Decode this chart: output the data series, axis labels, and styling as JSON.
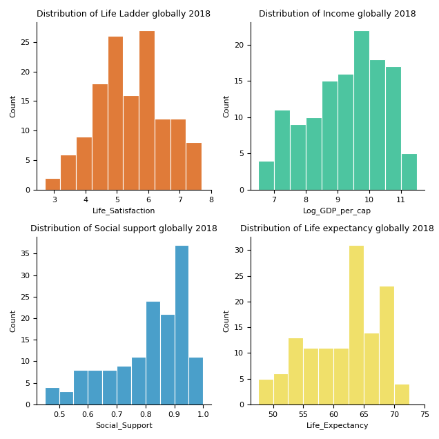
{
  "title1": "Distribution of Life Ladder globally 2018",
  "title2": "Distribution of Income globally 2018",
  "title3": "Distribution of Social support globally 2018",
  "title4": "Distribution of Life expectancy globally 2018",
  "xlabel1": "Life_Satisfaction",
  "xlabel2": "Log_GDP_per_cap",
  "xlabel3": "Social_Support",
  "xlabel4": "Life_Expectancy",
  "ylabel": "Count",
  "color1": "#E07B39",
  "color2": "#4DC5A0",
  "color3": "#4A9FCA",
  "color4": "#F0E06A",
  "hist1_values": [
    2,
    6,
    9,
    18,
    26,
    16,
    27,
    12,
    12,
    8
  ],
  "hist1_bins": [
    2.7,
    3.2,
    3.7,
    4.2,
    4.7,
    5.2,
    5.7,
    6.2,
    6.7,
    7.2,
    7.7
  ],
  "hist1_xticks": [
    3,
    4,
    5,
    6,
    7,
    8
  ],
  "hist2_values": [
    4,
    11,
    9,
    10,
    15,
    16,
    22,
    18,
    17,
    5
  ],
  "hist2_bins": [
    6.5,
    7.0,
    7.5,
    8.0,
    8.5,
    9.0,
    9.5,
    10.0,
    10.5,
    11.0,
    11.5
  ],
  "hist2_xticks": [
    7,
    8,
    9,
    10,
    11
  ],
  "hist3_values": [
    4,
    3,
    8,
    8,
    8,
    9,
    11,
    24,
    21,
    37,
    11
  ],
  "hist3_bins": [
    0.45,
    0.5,
    0.55,
    0.6,
    0.65,
    0.7,
    0.75,
    0.8,
    0.85,
    0.9,
    0.95,
    1.0
  ],
  "hist3_xticks": [
    0.5,
    0.6,
    0.7,
    0.8,
    0.9,
    1.0
  ],
  "hist4_values": [
    5,
    6,
    13,
    11,
    11,
    11,
    31,
    14,
    23,
    4
  ],
  "hist4_bins": [
    47.5,
    50.0,
    52.5,
    55.0,
    57.5,
    60.0,
    62.5,
    65.0,
    67.5,
    70.0,
    72.5
  ],
  "hist4_xticks": [
    50,
    55,
    60,
    65,
    70,
    75
  ],
  "edgecolor": "white",
  "linewidth": 0.8,
  "title_fontsize": 9,
  "label_fontsize": 8,
  "tick_fontsize": 8
}
